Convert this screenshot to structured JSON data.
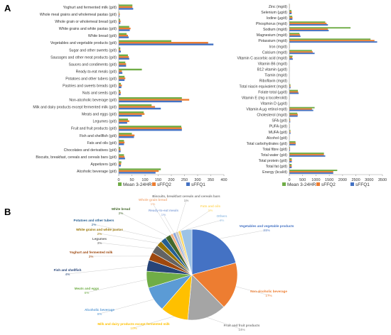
{
  "panel_labels": {
    "a": "A",
    "b": "B"
  },
  "colors": {
    "mean": "#70ad47",
    "sffq2": "#ed7d31",
    "sffq1": "#4472c4",
    "axis": "#999999",
    "grid": "#d9d9d9"
  },
  "chart_data": [
    {
      "type": "bar",
      "orientation": "horizontal",
      "panel": "A-left",
      "categories": [
        "Yoghurt and fermented milk (g/d)",
        "Whole meal grains and wholemeal pastas (g/d)",
        "Whole grain or wholemeal bread (g/d)",
        "White grains and white pastas (g/d)",
        "White bread (g/d)",
        "Vegetables and vegetable products (g/d)",
        "Sugar and other sweets (g/d)",
        "Sausages and other meat products (g/d)",
        "Sauces and condiments (g/d)",
        "Ready-to-eat meals (g/d)",
        "Potatoes and other tubers (g/d)",
        "Pastries and sweets breads (g/d)",
        "Nuts and seeds (g/d)",
        "Non-alcoholic beverage (g/d)",
        "Milk and dairy products except fermented milk (g/d)",
        "Meats and eggs (g/d)",
        "Legumes (g/d)",
        "Fruit and fruit products (g/d)",
        "Fish and shellfish (g/d)",
        "Fats and oils (g/d)",
        "Chocolates and derivatives (g/d)",
        "Biscuits, breakfast, cereals and cereals bars (g/d)",
        "Appetizers (g/d)",
        "Alcoholic beverage (g/d)"
      ],
      "series": [
        {
          "name": "Mean 3-24HRs",
          "values": [
            52,
            2,
            5,
            40,
            30,
            200,
            6,
            35,
            25,
            88,
            22,
            8,
            6,
            240,
            125,
            95,
            35,
            238,
            50,
            20,
            6,
            20,
            10,
            160
          ]
        },
        {
          "name": "sFFQ2",
          "values": [
            52,
            4,
            7,
            45,
            35,
            340,
            6,
            38,
            28,
            12,
            25,
            12,
            8,
            268,
            138,
            98,
            40,
            240,
            60,
            22,
            7,
            22,
            9,
            152
          ]
        },
        {
          "name": "sFFQ1",
          "values": [
            55,
            3,
            6,
            42,
            38,
            360,
            8,
            40,
            28,
            14,
            22,
            10,
            7,
            240,
            160,
            88,
            32,
            240,
            58,
            20,
            7,
            24,
            8,
            140
          ]
        }
      ],
      "xlim": [
        0,
        400
      ],
      "xticks": [
        "0",
        "50",
        "100",
        "150",
        "200",
        "250",
        "300",
        "350",
        "400"
      ],
      "grid": false,
      "legend": "bottom"
    },
    {
      "type": "bar",
      "orientation": "horizontal",
      "panel": "A-right",
      "categories": [
        "Zinc (mg/d)",
        "Selenium (µg/d)",
        "Iodine (µg/d)",
        "Phosphorus (mg/d)",
        "Sodium (mg/d)",
        "Magnesium (mg/d)",
        "Potassium (mg/d)",
        "Iron (mg/d)",
        "Calcium (mg/d)",
        "Vitamin C ascorbic acid (mg/d)",
        "Vitamin B6 (mg/d)",
        "B12 vitamin (µg/d)",
        "Tiamin (mg/d)",
        "Riboflavin (mg/d)",
        "Total niacin equivalent (mg/d)",
        "Folate total (µg/d)",
        "Vitamin E (mg α tocoferol/d)",
        "Vitamin D (µg/d)",
        "Vitamin A µg retinol eq/d)",
        "Cholesterol (mg/d)",
        "SFA (g/d)",
        "PUFA (g/d)",
        "MUFA (g/d)",
        "Alcohol (g/d)",
        "Total carbohydrates (g/d)",
        "Total fibre (g/d)",
        "Total water (g/d)",
        "Total protein (g/d)",
        "Total fat (g/d)",
        "Energy (kcal/d)"
      ],
      "series": [
        {
          "name": "Mean 3-24HRs",
          "values": [
            12,
            80,
            110,
            1350,
            2300,
            380,
            3050,
            14,
            850,
            120,
            2,
            6,
            2,
            2,
            40,
            320,
            10,
            4,
            950,
            300,
            30,
            15,
            40,
            8,
            230,
            25,
            1300,
            90,
            85,
            1800
          ]
        },
        {
          "name": "sFFQ2",
          "values": [
            13,
            90,
            120,
            1400,
            1450,
            400,
            3200,
            15,
            880,
            110,
            2,
            7,
            2,
            2,
            42,
            330,
            11,
            5,
            850,
            320,
            32,
            16,
            42,
            10,
            240,
            27,
            1300,
            95,
            90,
            1650
          ]
        },
        {
          "name": "sFFQ1",
          "values": [
            12,
            85,
            115,
            1450,
            1480,
            420,
            3300,
            14,
            950,
            130,
            2,
            7,
            2,
            2,
            45,
            350,
            11,
            5,
            900,
            310,
            33,
            17,
            44,
            9,
            235,
            26,
            1350,
            92,
            88,
            1650
          ]
        }
      ],
      "xlim": [
        0,
        3500
      ],
      "xticks": [
        "0",
        "500",
        "1000",
        "1500",
        "2000",
        "2500",
        "3000",
        "3500"
      ],
      "grid": false,
      "legend": "bottom"
    },
    {
      "type": "pie",
      "panel": "B",
      "slices": [
        {
          "label": "Vegetables and vegetable products",
          "pct_label": "21%",
          "value": 21,
          "color": "#4472c4"
        },
        {
          "label": "Non-alcoholic beverage",
          "pct_label": "17%",
          "value": 17,
          "color": "#ed7d31"
        },
        {
          "label": "Fruit and fruit products",
          "pct_label": "14%",
          "value": 14,
          "color": "#a5a5a5"
        },
        {
          "label": "Milk and dairy products except fermented milk",
          "pct_label": "10%",
          "value": 10,
          "color": "#ffc000"
        },
        {
          "label": "Alcoholic beverage",
          "pct_label": "9%",
          "value": 9,
          "color": "#5b9bd5"
        },
        {
          "label": "Meats and eggs",
          "pct_label": "6%",
          "value": 6,
          "color": "#70ad47"
        },
        {
          "label": "Fish and shellfish",
          "pct_label": "4%",
          "value": 4,
          "color": "#264478"
        },
        {
          "label": "Yoghurt and fermented milk",
          "pct_label": "3%",
          "value": 3,
          "color": "#9e480e"
        },
        {
          "label": "Legumes",
          "pct_label": "3%",
          "value": 3,
          "color": "#636363"
        },
        {
          "label": "White grains and white pastas",
          "pct_label": "2%",
          "value": 2,
          "color": "#997300"
        },
        {
          "label": "Potatoes and other tubers",
          "pct_label": "2%",
          "value": 2,
          "color": "#255e91"
        },
        {
          "label": "White bread",
          "pct_label": "2%",
          "value": 2,
          "color": "#43682b"
        },
        {
          "label": "Whole grain bread",
          "pct_label": "1%",
          "value": 1,
          "color": "#f4b183"
        },
        {
          "label": "Ready-to-eat meals",
          "pct_label": "1%",
          "value": 1,
          "color": "#8faadc"
        },
        {
          "label": "Biscuits, breakfast cereals and cereals bars",
          "pct_label": "1%",
          "value": 1,
          "color": "#c9c9c9"
        },
        {
          "label": "Fats and oils",
          "pct_label": "1%",
          "value": 1,
          "color": "#ffd966"
        },
        {
          "label": "Others",
          "pct_label": "4%",
          "value": 4,
          "color": "#9dc3e6"
        }
      ]
    }
  ]
}
